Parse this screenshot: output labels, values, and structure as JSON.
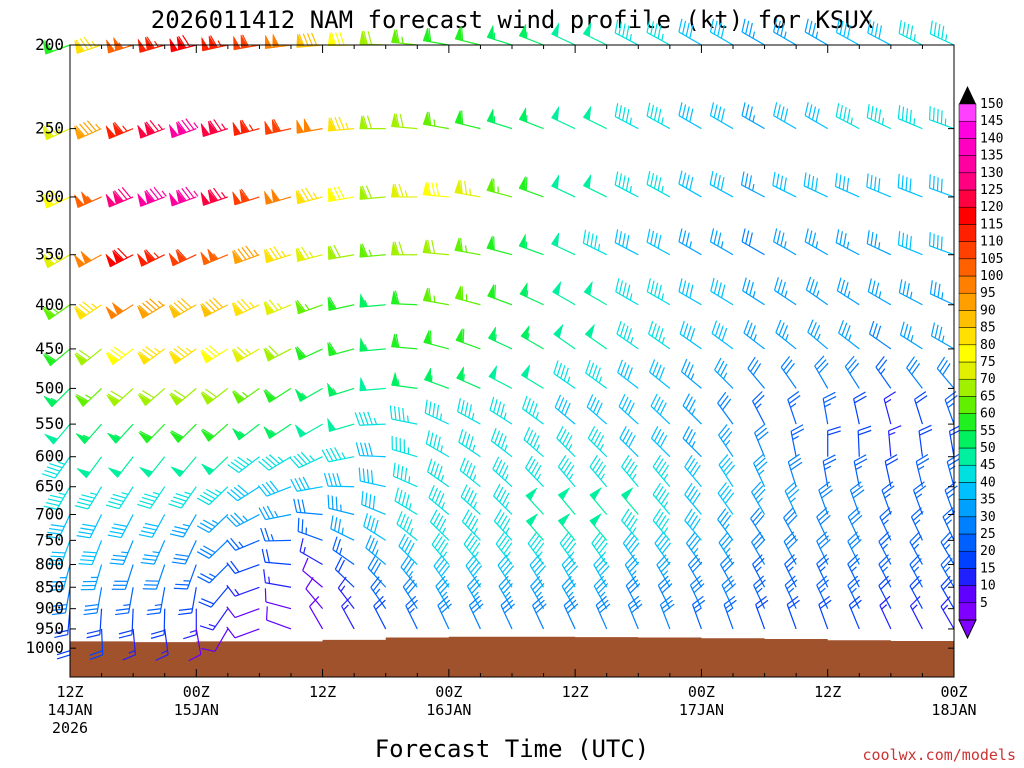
{
  "chart_data": {
    "type": "wind-barb-profile",
    "title": "2026011412 NAM forecast wind profile (kt) for KSUX",
    "xlabel": "Forecast Time (UTC)",
    "credit": "coolwx.com/models",
    "pressure_levels": [
      200,
      250,
      300,
      350,
      400,
      450,
      500,
      550,
      600,
      650,
      700,
      750,
      800,
      850,
      900,
      950,
      1000
    ],
    "y_tick_labels": [
      "200",
      "250",
      "300",
      "350",
      "400",
      "450",
      "500",
      "550",
      "600",
      "650",
      "700",
      "750",
      "800",
      "850",
      "900",
      "950",
      "1000"
    ],
    "x_ticks": [
      {
        "hour": 0,
        "line1": "12Z",
        "line2": "14JAN",
        "line3": "2026"
      },
      {
        "hour": 12,
        "line1": "00Z",
        "line2": "15JAN",
        "line3": ""
      },
      {
        "hour": 24,
        "line1": "12Z",
        "line2": "",
        "line3": ""
      },
      {
        "hour": 36,
        "line1": "00Z",
        "line2": "16JAN",
        "line3": ""
      },
      {
        "hour": 48,
        "line1": "12Z",
        "line2": "",
        "line3": ""
      },
      {
        "hour": 60,
        "line1": "00Z",
        "line2": "17JAN",
        "line3": ""
      },
      {
        "hour": 72,
        "line1": "12Z",
        "line2": "",
        "line3": ""
      },
      {
        "hour": 84,
        "line1": "00Z",
        "line2": "18JAN",
        "line3": ""
      }
    ],
    "x_range_hours": [
      0,
      84
    ],
    "time_step_hours": 3,
    "colorbar": {
      "min": 5,
      "max": 150,
      "step": 5,
      "labels": [
        "150",
        "145",
        "140",
        "135",
        "130",
        "125",
        "120",
        "115",
        "110",
        "105",
        "100",
        "95",
        "90",
        "85",
        "80",
        "75",
        "70",
        "65",
        "60",
        "55",
        "50",
        "45",
        "40",
        "35",
        "30",
        "25",
        "20",
        "15",
        "10",
        "5"
      ],
      "colors": [
        "#8000ff",
        "#6000ff",
        "#2020ff",
        "#0040ff",
        "#0060ff",
        "#0080ff",
        "#00a0ff",
        "#00c0ff",
        "#00e0e0",
        "#00f0a0",
        "#00f060",
        "#20f020",
        "#60f000",
        "#a0f000",
        "#e0f000",
        "#ffff00",
        "#ffe000",
        "#ffc000",
        "#ffa000",
        "#ff8000",
        "#ff6000",
        "#ff4000",
        "#ff2000",
        "#ff0000",
        "#ff0040",
        "#ff0080",
        "#ff00a0",
        "#ff00c0",
        "#ff00e0",
        "#ff40ff"
      ]
    },
    "terrain_color": "#a0522d",
    "surface_pressure": [
      {
        "hour": 0,
        "p": 982
      },
      {
        "hour": 6,
        "p": 984
      },
      {
        "hour": 12,
        "p": 982
      },
      {
        "hour": 18,
        "p": 982
      },
      {
        "hour": 24,
        "p": 978
      },
      {
        "hour": 30,
        "p": 972
      },
      {
        "hour": 36,
        "p": 970
      },
      {
        "hour": 42,
        "p": 970
      },
      {
        "hour": 48,
        "p": 971
      },
      {
        "hour": 54,
        "p": 972
      },
      {
        "hour": 60,
        "p": 974
      },
      {
        "hour": 66,
        "p": 976
      },
      {
        "hour": 72,
        "p": 979
      },
      {
        "hour": 78,
        "p": 981
      },
      {
        "hour": 84,
        "p": 983
      }
    ],
    "wind_speed_keyframes": [
      {
        "hour": 0,
        "speeds": [
          60,
          75,
          80,
          75,
          65,
          60,
          55,
          50,
          45,
          45,
          40,
          40,
          35,
          30,
          20,
          20,
          0
        ]
      },
      {
        "hour": 6,
        "speeds": [
          105,
          115,
          130,
          120,
          100,
          80,
          70,
          55,
          50,
          45,
          40,
          35,
          30,
          25,
          20,
          15,
          0
        ]
      },
      {
        "hour": 12,
        "speeds": [
          120,
          135,
          135,
          110,
          90,
          85,
          70,
          60,
          50,
          45,
          35,
          30,
          25,
          20,
          15,
          10,
          0
        ]
      },
      {
        "hour": 18,
        "speeds": [
          110,
          115,
          110,
          95,
          85,
          75,
          65,
          55,
          45,
          40,
          35,
          25,
          20,
          15,
          12,
          10,
          0
        ]
      },
      {
        "hour": 24,
        "speeds": [
          90,
          100,
          85,
          75,
          65,
          60,
          55,
          50,
          45,
          40,
          30,
          25,
          15,
          10,
          8,
          8,
          0
        ]
      },
      {
        "hour": 30,
        "speeds": [
          70,
          70,
          70,
          65,
          55,
          55,
          50,
          45,
          40,
          40,
          40,
          40,
          35,
          30,
          25,
          20,
          0
        ]
      },
      {
        "hour": 36,
        "speeds": [
          60,
          65,
          80,
          70,
          65,
          60,
          55,
          45,
          45,
          45,
          45,
          45,
          45,
          40,
          35,
          30,
          0
        ]
      },
      {
        "hour": 42,
        "speeds": [
          55,
          55,
          65,
          60,
          60,
          55,
          50,
          45,
          45,
          45,
          45,
          45,
          45,
          40,
          35,
          30,
          0
        ]
      },
      {
        "hour": 48,
        "speeds": [
          50,
          50,
          50,
          50,
          50,
          50,
          45,
          40,
          45,
          45,
          50,
          50,
          45,
          40,
          35,
          30,
          0
        ]
      },
      {
        "hour": 54,
        "speeds": [
          45,
          45,
          45,
          40,
          45,
          45,
          40,
          40,
          40,
          45,
          50,
          45,
          40,
          35,
          30,
          30,
          0
        ]
      },
      {
        "hour": 60,
        "speeds": [
          40,
          40,
          40,
          35,
          40,
          40,
          35,
          35,
          35,
          40,
          40,
          40,
          35,
          30,
          30,
          25,
          0
        ]
      },
      {
        "hour": 66,
        "speeds": [
          35,
          35,
          35,
          30,
          35,
          35,
          30,
          25,
          30,
          35,
          35,
          30,
          30,
          25,
          25,
          20,
          0
        ]
      },
      {
        "hour": 72,
        "speeds": [
          35,
          40,
          40,
          35,
          35,
          35,
          30,
          25,
          20,
          25,
          30,
          30,
          30,
          25,
          25,
          20,
          0
        ]
      },
      {
        "hour": 78,
        "speeds": [
          40,
          45,
          40,
          35,
          35,
          30,
          25,
          15,
          15,
          20,
          25,
          25,
          25,
          25,
          20,
          15,
          0
        ]
      },
      {
        "hour": 84,
        "speeds": [
          45,
          45,
          40,
          40,
          35,
          35,
          30,
          25,
          20,
          25,
          25,
          25,
          25,
          25,
          20,
          15,
          0
        ]
      }
    ],
    "wind_direction_keyframes": [
      {
        "hour": 0,
        "dirs": [
          250,
          245,
          245,
          240,
          235,
          230,
          225,
          220,
          215,
          210,
          205,
          200,
          195,
          190,
          185,
          180,
          180
        ]
      },
      {
        "hour": 12,
        "dirs": [
          255,
          250,
          250,
          245,
          240,
          235,
          230,
          225,
          220,
          215,
          210,
          205,
          200,
          190,
          180,
          170,
          170
        ]
      },
      {
        "hour": 24,
        "dirs": [
          265,
          260,
          255,
          255,
          250,
          245,
          240,
          240,
          245,
          260,
          275,
          290,
          300,
          310,
          320,
          330,
          330
        ]
      },
      {
        "hour": 36,
        "dirs": [
          280,
          280,
          275,
          275,
          280,
          285,
          290,
          295,
          300,
          305,
          310,
          315,
          320,
          325,
          330,
          335,
          335
        ]
      },
      {
        "hour": 48,
        "dirs": [
          295,
          295,
          295,
          295,
          300,
          305,
          305,
          310,
          315,
          320,
          320,
          320,
          325,
          330,
          330,
          335,
          335
        ]
      },
      {
        "hour": 60,
        "dirs": [
          300,
          300,
          300,
          300,
          300,
          305,
          310,
          315,
          315,
          320,
          320,
          320,
          325,
          330,
          335,
          340,
          340
        ]
      },
      {
        "hour": 72,
        "dirs": [
          300,
          300,
          295,
          300,
          305,
          310,
          330,
          350,
          0,
          350,
          340,
          335,
          335,
          335,
          335,
          340,
          340
        ]
      },
      {
        "hour": 84,
        "dirs": [
          295,
          290,
          290,
          290,
          295,
          300,
          320,
          340,
          350,
          345,
          340,
          335,
          330,
          330,
          330,
          330,
          330
        ]
      }
    ]
  }
}
